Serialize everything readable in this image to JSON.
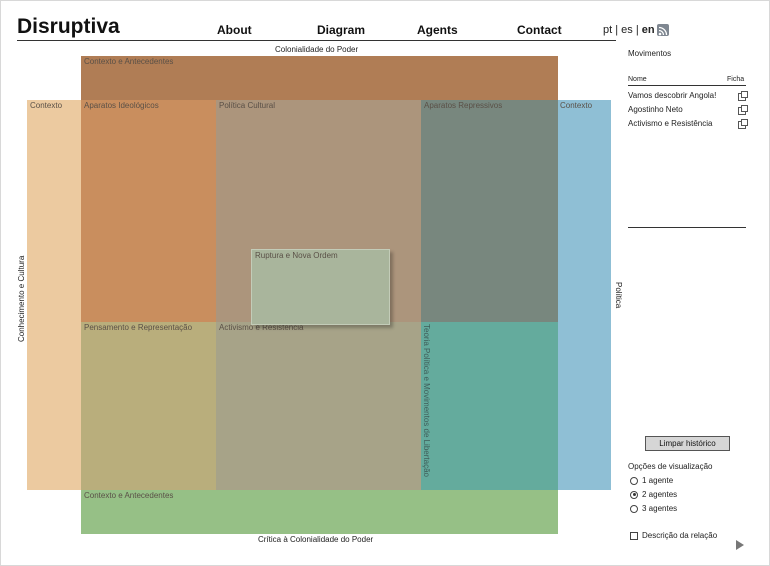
{
  "app": {
    "logo": "Disruptiva"
  },
  "nav": {
    "about": "About",
    "diagram": "Diagram",
    "agents": "Agents",
    "contact": "Contact"
  },
  "lang": {
    "pt": "pt",
    "sep1": " | ",
    "es": "es",
    "sep2": " | ",
    "en": "en"
  },
  "diagram": {
    "top_axis": "Colonialidade do Poder",
    "bottom_axis": "Crítica à Colonialidade do Poder",
    "left_axis": "Conhecimento e Cultura",
    "right_axis": "Política",
    "ctx_top": "Contexto e Antecedentes",
    "ctx_bottom": "Contexto e Antecedentes",
    "ctx_left": "Contexto",
    "ctx_right": "Contexto",
    "aparatos_ideologicos": "Aparatos Ideológicos",
    "politica_cultural": "Política Cultural",
    "aparatos_repressivos": "Aparatos Repressivos",
    "pensamento": "Pensamento e Representação",
    "activismo": "Activismo e Resistência",
    "teoria": "Teoria Política e Movimentos de Libertação",
    "ruptura": "Ruptura e Nova Ordem"
  },
  "sidebar": {
    "title": "Movimentos",
    "col_nome": "Nome",
    "col_ficha": "Ficha",
    "items": [
      "Vamos descobrir Angola!",
      "Agostinho Neto",
      "Activismo e Resistência"
    ],
    "clear_button": "Limpar histórico",
    "options_title": "Opções de visualização",
    "options": [
      "1 agente",
      "2 agentes",
      "3 agentes"
    ],
    "selected_option": "2 agentes",
    "relation_label": "Descrição da relação"
  }
}
